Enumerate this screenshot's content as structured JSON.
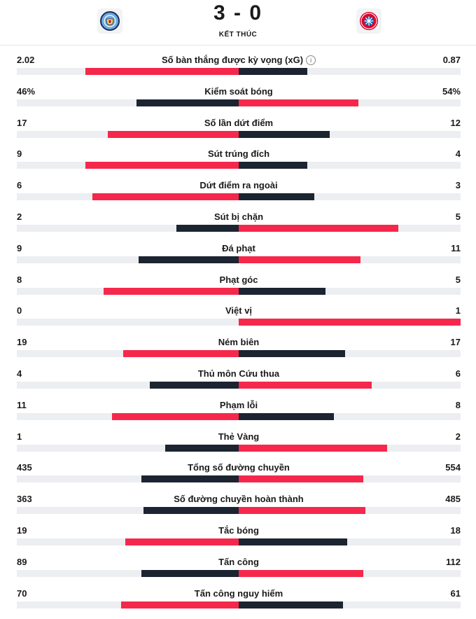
{
  "match": {
    "score": "3 - 0",
    "status": "KẾT THÚC",
    "home_crest_icon": "man-city-crest-icon",
    "away_crest_icon": "bayern-munich-crest-icon"
  },
  "colors": {
    "red": "#f5284c",
    "dark": "#1b2430",
    "track": "#eceef1"
  },
  "stats": [
    {
      "label": "Số bàn thắng được kỳ vọng (xG)",
      "home": "2.02",
      "away": "0.87",
      "home_value": 2.02,
      "away_value": 0.87,
      "info": true,
      "home_fill": 0.69,
      "away_fill": 0.31,
      "home_color": "red",
      "away_color": "dark"
    },
    {
      "label": "Kiểm soát bóng",
      "home": "46%",
      "away": "54%",
      "home_value": 46,
      "away_value": 54,
      "home_fill": 0.46,
      "away_fill": 0.54,
      "home_color": "dark",
      "away_color": "red"
    },
    {
      "label": "Số lần dứt điểm",
      "home": "17",
      "away": "12",
      "home_value": 17,
      "away_value": 12,
      "home_fill": 0.59,
      "away_fill": 0.41,
      "home_color": "red",
      "away_color": "dark"
    },
    {
      "label": "Sút trúng đích",
      "home": "9",
      "away": "4",
      "home_value": 9,
      "away_value": 4,
      "home_fill": 0.69,
      "away_fill": 0.31,
      "home_color": "red",
      "away_color": "dark"
    },
    {
      "label": "Dứt điểm ra ngoài",
      "home": "6",
      "away": "3",
      "home_value": 6,
      "away_value": 3,
      "home_fill": 0.66,
      "away_fill": 0.34,
      "home_color": "red",
      "away_color": "dark"
    },
    {
      "label": "Sút bị chặn",
      "home": "2",
      "away": "5",
      "home_value": 2,
      "away_value": 5,
      "home_fill": 0.28,
      "away_fill": 0.72,
      "home_color": "dark",
      "away_color": "red"
    },
    {
      "label": "Đá phạt",
      "home": "9",
      "away": "11",
      "home_value": 9,
      "away_value": 11,
      "home_fill": 0.45,
      "away_fill": 0.55,
      "home_color": "dark",
      "away_color": "red"
    },
    {
      "label": "Phạt góc",
      "home": "8",
      "away": "5",
      "home_value": 8,
      "away_value": 5,
      "home_fill": 0.61,
      "away_fill": 0.39,
      "home_color": "red",
      "away_color": "dark"
    },
    {
      "label": "Việt vị",
      "home": "0",
      "away": "1",
      "home_value": 0,
      "away_value": 1,
      "home_fill": 0.0,
      "away_fill": 1.0,
      "home_color": "dark",
      "away_color": "red"
    },
    {
      "label": "Ném biên",
      "home": "19",
      "away": "17",
      "home_value": 19,
      "away_value": 17,
      "home_fill": 0.52,
      "away_fill": 0.48,
      "home_color": "red",
      "away_color": "dark"
    },
    {
      "label": "Thủ môn Cứu thua",
      "home": "4",
      "away": "6",
      "home_value": 4,
      "away_value": 6,
      "home_fill": 0.4,
      "away_fill": 0.6,
      "home_color": "dark",
      "away_color": "red"
    },
    {
      "label": "Phạm lỗi",
      "home": "11",
      "away": "8",
      "home_value": 11,
      "away_value": 8,
      "home_fill": 0.57,
      "away_fill": 0.43,
      "home_color": "red",
      "away_color": "dark"
    },
    {
      "label": "Thẻ Vàng",
      "home": "1",
      "away": "2",
      "home_value": 1,
      "away_value": 2,
      "home_fill": 0.33,
      "away_fill": 0.67,
      "home_color": "dark",
      "away_color": "red"
    },
    {
      "label": "Tổng số đường chuyền",
      "home": "435",
      "away": "554",
      "home_value": 435,
      "away_value": 554,
      "home_fill": 0.44,
      "away_fill": 0.56,
      "home_color": "dark",
      "away_color": "red"
    },
    {
      "label": "Số đường chuyền hoàn thành",
      "home": "363",
      "away": "485",
      "home_value": 363,
      "away_value": 485,
      "home_fill": 0.43,
      "away_fill": 0.57,
      "home_color": "dark",
      "away_color": "red"
    },
    {
      "label": "Tắc bóng",
      "home": "19",
      "away": "18",
      "home_value": 19,
      "away_value": 18,
      "home_fill": 0.51,
      "away_fill": 0.49,
      "home_color": "red",
      "away_color": "dark"
    },
    {
      "label": "Tấn công",
      "home": "89",
      "away": "112",
      "home_value": 89,
      "away_value": 112,
      "home_fill": 0.44,
      "away_fill": 0.56,
      "home_color": "dark",
      "away_color": "red"
    },
    {
      "label": "Tấn công nguy hiểm",
      "home": "70",
      "away": "61",
      "home_value": 70,
      "away_value": 61,
      "home_fill": 0.53,
      "away_fill": 0.47,
      "home_color": "red",
      "away_color": "dark"
    }
  ]
}
